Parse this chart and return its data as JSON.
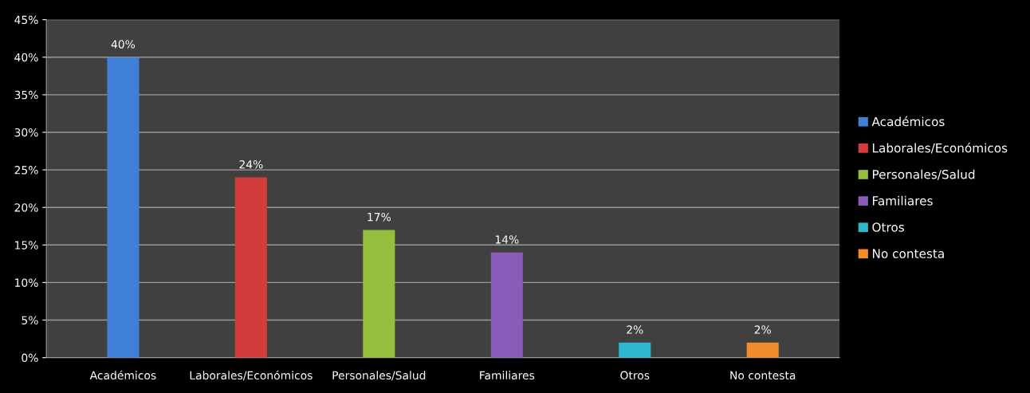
{
  "chart_data": {
    "type": "bar",
    "categories": [
      "Académicos",
      "Laborales/Económicos",
      "Personales/Salud",
      "Familiares",
      "Otros",
      "No contesta"
    ],
    "series": [
      {
        "name": "Académicos",
        "color": "#3f7fd6",
        "values": [
          40,
          null,
          null,
          null,
          null,
          null
        ],
        "value_labels": [
          "40%",
          null,
          null,
          null,
          null,
          null
        ]
      },
      {
        "name": "Laborales/Económicos",
        "color": "#d43c3c",
        "values": [
          null,
          24,
          null,
          null,
          null,
          null
        ],
        "value_labels": [
          null,
          "24%",
          null,
          null,
          null,
          null
        ]
      },
      {
        "name": "Personales/Salud",
        "color": "#93bf3c",
        "values": [
          null,
          null,
          17,
          null,
          null,
          null
        ],
        "value_labels": [
          null,
          null,
          "17%",
          null,
          null,
          null
        ]
      },
      {
        "name": "Familiares",
        "color": "#8a5bb8",
        "values": [
          null,
          null,
          null,
          14,
          null,
          null
        ],
        "value_labels": [
          null,
          null,
          null,
          "14%",
          null,
          null
        ]
      },
      {
        "name": "Otros",
        "color": "#2fb6d0",
        "values": [
          null,
          null,
          null,
          null,
          2,
          null
        ],
        "value_labels": [
          null,
          null,
          null,
          null,
          "2%",
          null
        ]
      },
      {
        "name": "No contesta",
        "color": "#f08c2a",
        "values": [
          null,
          null,
          null,
          null,
          null,
          2
        ],
        "value_labels": [
          null,
          null,
          null,
          null,
          null,
          "2%"
        ]
      }
    ],
    "ylim": [
      0,
      45
    ],
    "yticks": [
      {
        "value": 0,
        "label": "0%"
      },
      {
        "value": 5,
        "label": "5%"
      },
      {
        "value": 10,
        "label": "10%"
      },
      {
        "value": 15,
        "label": "15%"
      },
      {
        "value": 20,
        "label": "20%"
      },
      {
        "value": 25,
        "label": "25%"
      },
      {
        "value": 30,
        "label": "30%"
      },
      {
        "value": 35,
        "label": "35%"
      },
      {
        "value": 40,
        "label": "40%"
      },
      {
        "value": 45,
        "label": "45%"
      }
    ],
    "grid": "y",
    "legend": "right"
  }
}
